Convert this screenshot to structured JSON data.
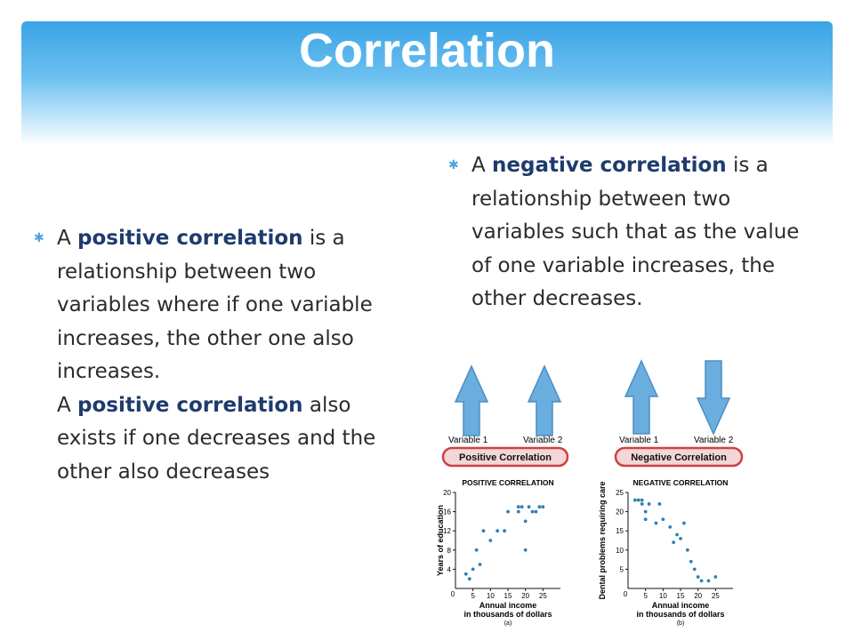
{
  "slide": {
    "title": "Correlation",
    "left_bullet": {
      "p1_word1": "A",
      "p1_bold": "positive correlation",
      "p1_rest": "is a relationship between two variables where if one variable increases, the other one also increases.",
      "p2_word1": "A",
      "p2_bold": "positive correlation",
      "p2_rest": "also exists if one decreases and the other also decreases"
    },
    "right_bullet": {
      "word1": "A",
      "bold": "negative correlation",
      "rest": "is a relationship between two variables such that as the value of one variable increases, the other decreases."
    }
  },
  "figure": {
    "var1": "Variable 1",
    "var2": "Variable 2",
    "pos_badge": "Positive Correlation",
    "neg_badge": "Negative Correlation",
    "colors": {
      "arrow": "#6aaee0",
      "badge_border": "#d04040",
      "dot": "#2f7fb7"
    }
  },
  "chart_data": [
    {
      "type": "scatter",
      "title": "POSITIVE CORRELATION",
      "xlabel": "Annual income\nin thousands of dollars",
      "ylabel": "Years of education",
      "caption": "(a)",
      "xlim": [
        0,
        30
      ],
      "ylim": [
        0,
        20
      ],
      "xticks": [
        5,
        10,
        15,
        20,
        25
      ],
      "yticks": [
        4,
        8,
        12,
        16,
        20
      ],
      "points": [
        [
          3,
          3
        ],
        [
          4,
          2
        ],
        [
          5,
          4
        ],
        [
          6,
          8
        ],
        [
          7,
          5
        ],
        [
          8,
          12
        ],
        [
          10,
          10
        ],
        [
          12,
          12
        ],
        [
          14,
          12
        ],
        [
          15,
          16
        ],
        [
          18,
          16
        ],
        [
          18,
          17
        ],
        [
          19,
          17
        ],
        [
          20,
          14
        ],
        [
          20,
          8
        ],
        [
          21,
          17
        ],
        [
          22,
          16
        ],
        [
          23,
          16
        ],
        [
          24,
          17
        ],
        [
          25,
          17
        ]
      ]
    },
    {
      "type": "scatter",
      "title": "NEGATIVE CORRELATION",
      "xlabel": "Annual income\nin thousands of dollars",
      "ylabel": "Dental problems requiring care",
      "caption": "(b)",
      "xlim": [
        0,
        30
      ],
      "ylim": [
        0,
        25
      ],
      "xticks": [
        5,
        10,
        15,
        20,
        25
      ],
      "yticks": [
        5,
        10,
        15,
        20,
        25
      ],
      "points": [
        [
          2,
          23
        ],
        [
          3,
          23
        ],
        [
          4,
          23
        ],
        [
          4,
          22
        ],
        [
          5,
          20
        ],
        [
          5,
          18
        ],
        [
          6,
          22
        ],
        [
          8,
          17
        ],
        [
          9,
          22
        ],
        [
          10,
          18
        ],
        [
          12,
          16
        ],
        [
          13,
          12
        ],
        [
          14,
          14
        ],
        [
          15,
          13
        ],
        [
          16,
          17
        ],
        [
          17,
          10
        ],
        [
          18,
          7
        ],
        [
          19,
          5
        ],
        [
          20,
          3
        ],
        [
          21,
          2
        ],
        [
          23,
          2
        ],
        [
          25,
          3
        ]
      ]
    }
  ]
}
